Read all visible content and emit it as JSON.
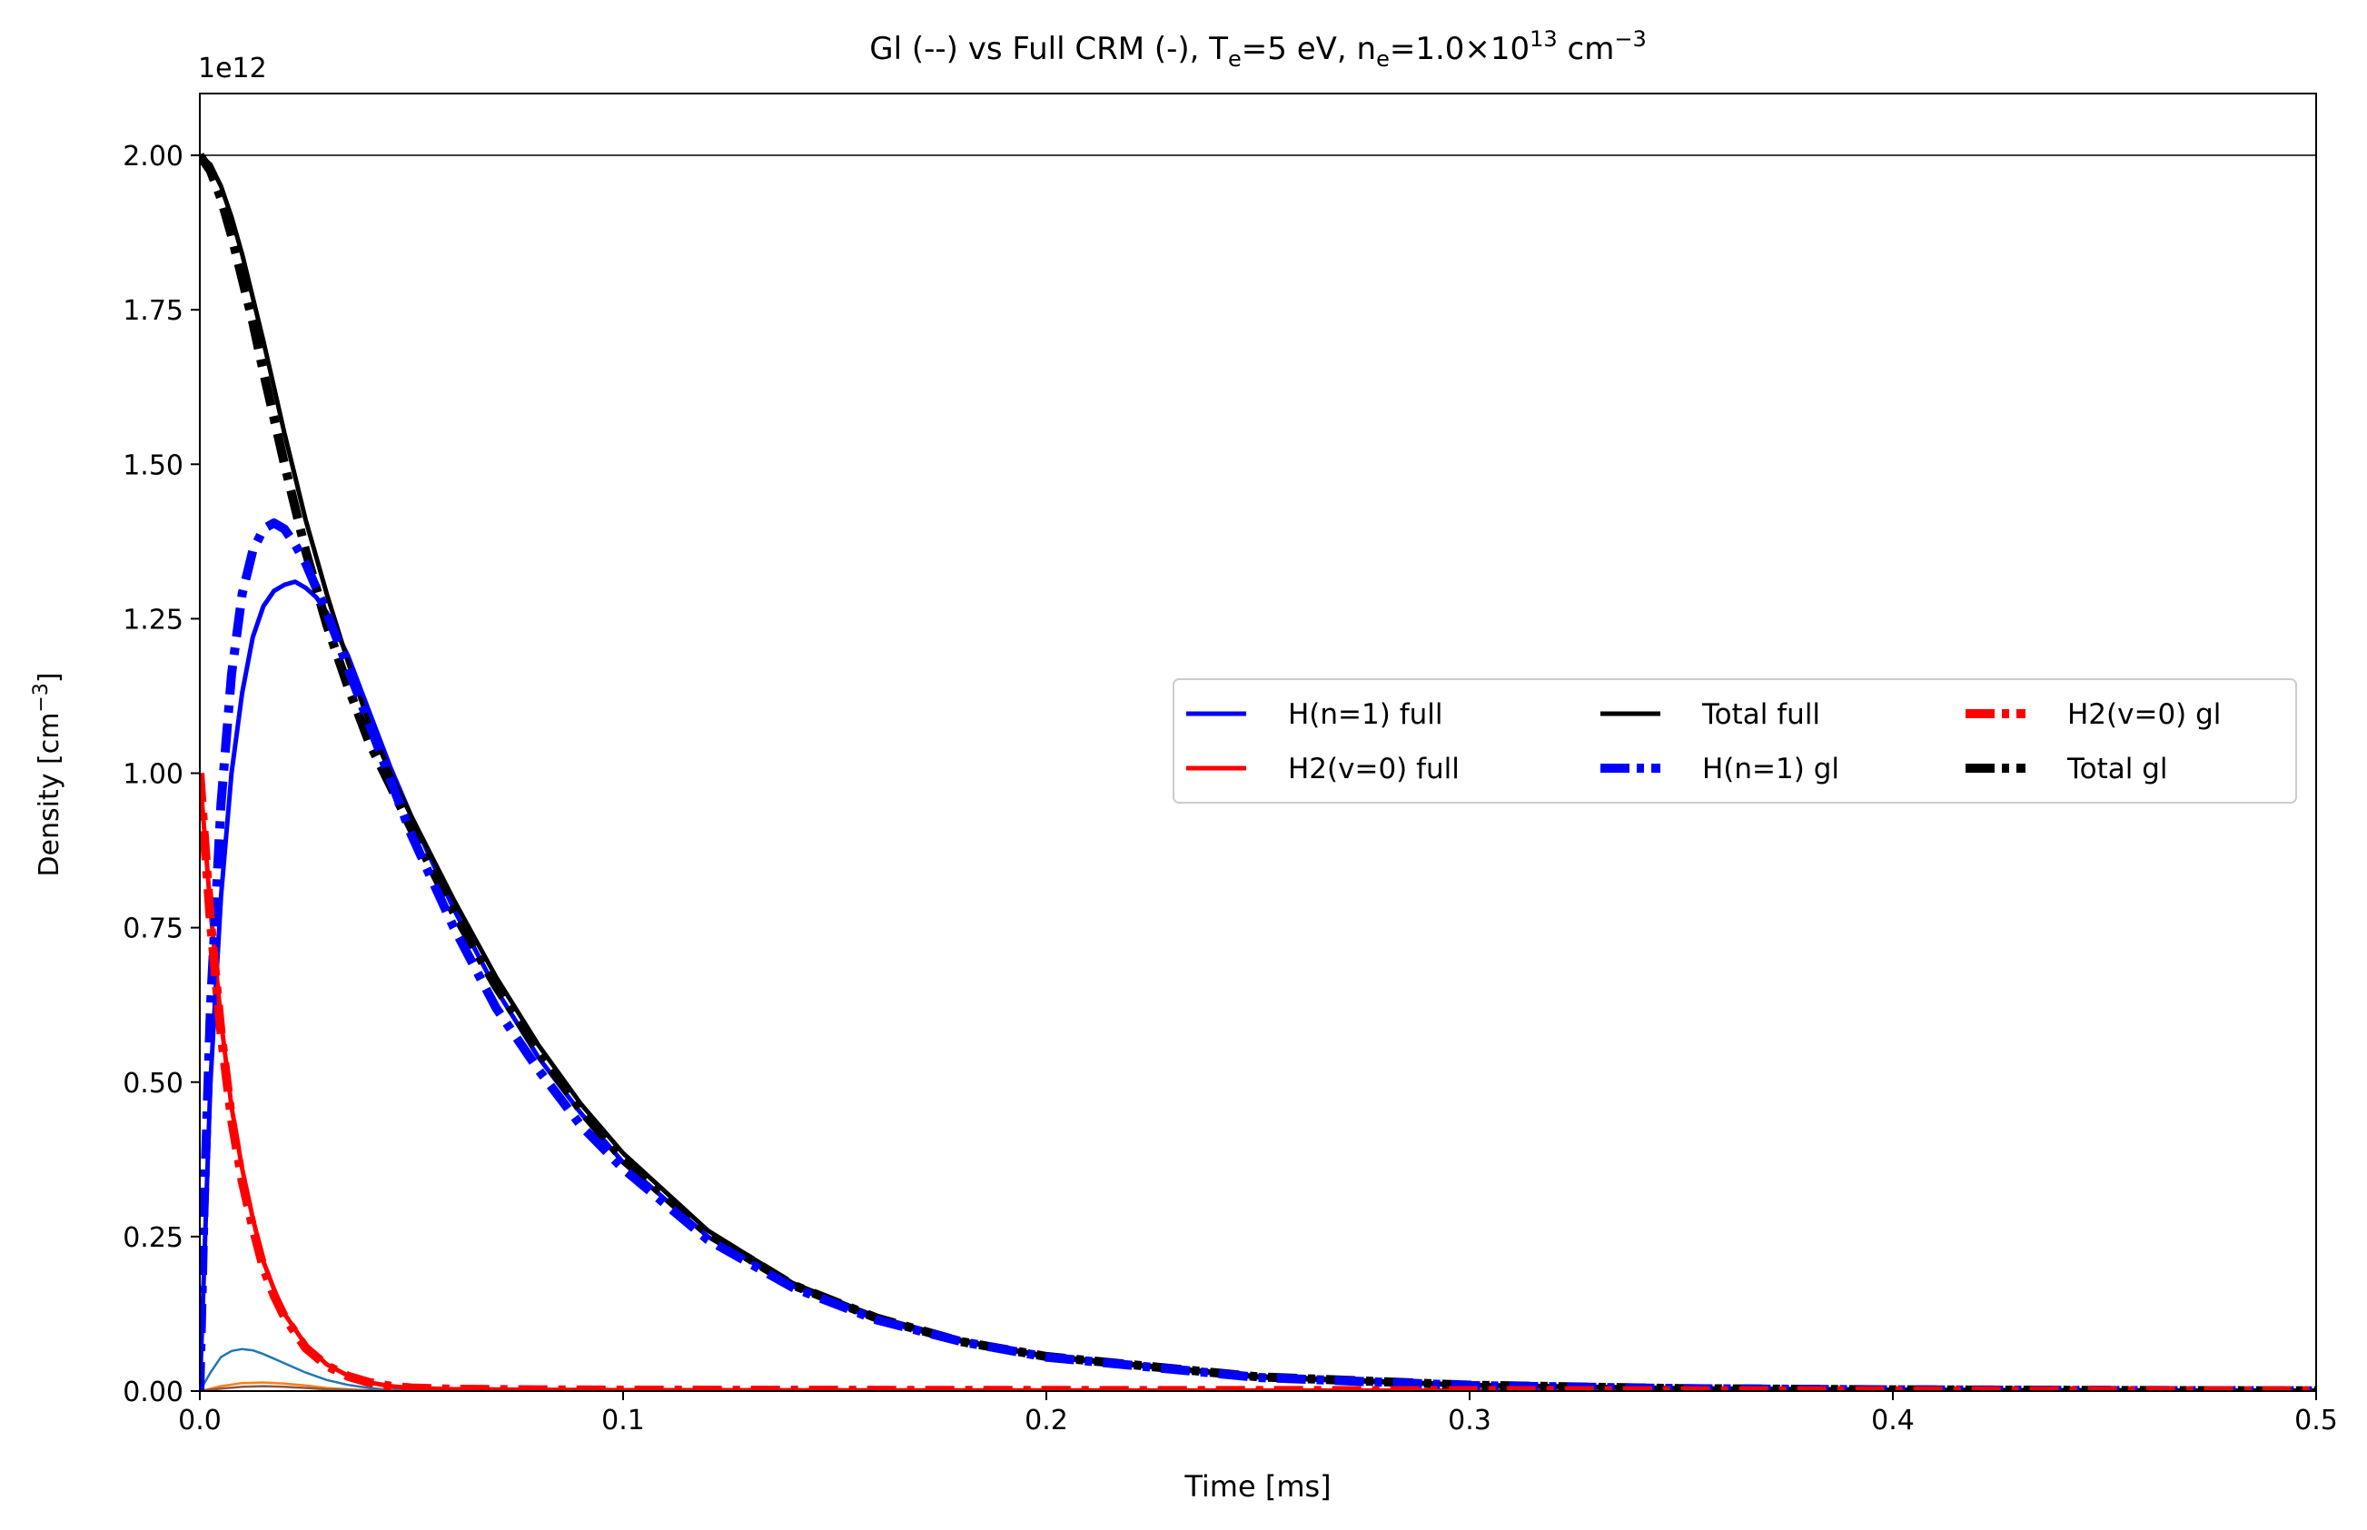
{
  "chart_data": {
    "type": "line",
    "title_parts": {
      "prefix": "Gl (--) vs Full CRM (-),  T",
      "te_sub": "e",
      "te_val": "=5 eV, n",
      "ne_sub": "e",
      "ne_val": "=1.0×10",
      "ne_exp": "13",
      "unit": " cm",
      "unit_exp": "−3"
    },
    "xlabel": "Time [ms]",
    "ylabel_main": "Density [cm",
    "ylabel_exp": "−3",
    "ylabel_close": "]",
    "y_offset_text": "1e12",
    "xlim": [
      0,
      0.5
    ],
    "ylim": [
      0,
      2100000000000.0
    ],
    "x_ticks": [
      0.0,
      0.1,
      0.2,
      0.3,
      0.4,
      0.5
    ],
    "x_tick_labels": [
      "0.0",
      "0.1",
      "0.2",
      "0.3",
      "0.4",
      "0.5"
    ],
    "y_ticks": [
      0,
      250000000000.0,
      500000000000.0,
      750000000000.0,
      1000000000000.0,
      1250000000000.0,
      1500000000000.0,
      1750000000000.0,
      2000000000000.0
    ],
    "y_tick_labels": [
      "0.00",
      "0.25",
      "0.50",
      "0.75",
      "1.00",
      "1.25",
      "1.50",
      "1.75",
      "2.00"
    ],
    "hline": 2000000000000.0,
    "legend_placement": "center-right",
    "legend_columns": 3,
    "series": [
      {
        "name": "H(n=1) full",
        "color": "#0000ff",
        "style": "solid",
        "legend": true,
        "x": [
          0,
          0.001,
          0.0025,
          0.005,
          0.0075,
          0.01,
          0.0125,
          0.015,
          0.0175,
          0.02,
          0.0225,
          0.025,
          0.0275,
          0.03,
          0.035,
          0.04,
          0.045,
          0.05,
          0.06,
          0.07,
          0.08,
          0.09,
          0.1,
          0.12,
          0.14,
          0.16,
          0.18,
          0.2,
          0.25,
          0.3,
          0.35,
          0.4,
          0.45,
          0.5
        ],
        "y": [
          0,
          200000000000.0,
          500000000000.0,
          800000000000.0,
          1000000000000.0,
          1130000000000.0,
          1220000000000.0,
          1270000000000.0,
          1295000000000.0,
          1305000000000.0,
          1310000000000.0,
          1300000000000.0,
          1285000000000.0,
          1260000000000.0,
          1190000000000.0,
          1100000000000.0,
          1010000000000.0,
          930000000000.0,
          780000000000.0,
          650000000000.0,
          540000000000.0,
          450000000000.0,
          370000000000.0,
          250000000000.0,
          170000000000.0,
          115000000000.0,
          80000000000.0,
          55000000000.0,
          22000000000.0,
          9000000000.0,
          4000000000.0,
          2000000000.0,
          1000000000.0,
          500000000.0
        ]
      },
      {
        "name": "H2(v=0) full",
        "color": "#ff0000",
        "style": "solid",
        "legend": true,
        "x": [
          0,
          0.0025,
          0.005,
          0.0075,
          0.01,
          0.0125,
          0.015,
          0.0175,
          0.02,
          0.025,
          0.03,
          0.035,
          0.04,
          0.045,
          0.05,
          0.06,
          0.08,
          0.1,
          0.2,
          0.3,
          0.4,
          0.5
        ],
        "y": [
          1000000000000.0,
          780000000000.0,
          600000000000.0,
          460000000000.0,
          360000000000.0,
          280000000000.0,
          210000000000.0,
          165000000000.0,
          125000000000.0,
          75000000000.0,
          43000000000.0,
          25000000000.0,
          14000000000.0,
          8000000000.0,
          5000000000.0,
          3000000000.0,
          2000000000.0,
          1500000000.0,
          1000000000.0,
          800000000.0,
          500000000.0,
          300000000.0
        ]
      },
      {
        "name": "Total full",
        "color": "#000000",
        "style": "solid",
        "legend": true,
        "x": [
          0,
          0.0025,
          0.005,
          0.0075,
          0.01,
          0.0125,
          0.015,
          0.0175,
          0.02,
          0.0225,
          0.025,
          0.03,
          0.035,
          0.04,
          0.045,
          0.05,
          0.06,
          0.07,
          0.08,
          0.09,
          0.1,
          0.12,
          0.14,
          0.16,
          0.18,
          0.2,
          0.25,
          0.3,
          0.35,
          0.4,
          0.45,
          0.5
        ],
        "y": [
          2000000000000.0,
          1985000000000.0,
          1950000000000.0,
          1900000000000.0,
          1840000000000.0,
          1770000000000.0,
          1700000000000.0,
          1625000000000.0,
          1550000000000.0,
          1480000000000.0,
          1410000000000.0,
          1290000000000.0,
          1180000000000.0,
          1080000000000.0,
          1000000000000.0,
          930000000000.0,
          795000000000.0,
          670000000000.0,
          560000000000.0,
          465000000000.0,
          385000000000.0,
          260000000000.0,
          175000000000.0,
          120000000000.0,
          82000000000.0,
          57000000000.0,
          24000000000.0,
          10000000000.0,
          4500000000.0,
          2000000000.0,
          1000000000.0,
          500000000.0
        ]
      },
      {
        "name": "H(n=1) gl",
        "color": "#0000ff",
        "style": "dashdot",
        "legend": true,
        "x": [
          0,
          0.001,
          0.0025,
          0.005,
          0.0075,
          0.01,
          0.0125,
          0.015,
          0.0175,
          0.02,
          0.0225,
          0.025,
          0.0275,
          0.03,
          0.035,
          0.04,
          0.045,
          0.05,
          0.06,
          0.07,
          0.08,
          0.09,
          0.1,
          0.12,
          0.14,
          0.16,
          0.18,
          0.2,
          0.25,
          0.3,
          0.35,
          0.4,
          0.45,
          0.5
        ],
        "y": [
          0,
          300000000000.0,
          620000000000.0,
          950000000000.0,
          1160000000000.0,
          1290000000000.0,
          1360000000000.0,
          1395000000000.0,
          1405000000000.0,
          1395000000000.0,
          1370000000000.0,
          1340000000000.0,
          1300000000000.0,
          1260000000000.0,
          1170000000000.0,
          1080000000000.0,
          990000000000.0,
          900000000000.0,
          750000000000.0,
          620000000000.0,
          520000000000.0,
          430000000000.0,
          360000000000.0,
          245000000000.0,
          168000000000.0,
          115000000000.0,
          80000000000.0,
          55000000000.0,
          22000000000.0,
          9000000000.0,
          4000000000.0,
          2000000000.0,
          1000000000.0,
          500000000.0
        ]
      },
      {
        "name": "H2(v=0) gl",
        "color": "#ff0000",
        "style": "dashdot",
        "legend": true,
        "x": [
          0,
          0.0025,
          0.005,
          0.0075,
          0.01,
          0.0125,
          0.015,
          0.0175,
          0.02,
          0.025,
          0.03,
          0.035,
          0.04,
          0.045,
          0.05,
          0.06,
          0.08,
          0.1,
          0.2,
          0.3,
          0.4,
          0.5
        ],
        "y": [
          1000000000000.0,
          760000000000.0,
          580000000000.0,
          440000000000.0,
          340000000000.0,
          265000000000.0,
          200000000000.0,
          155000000000.0,
          120000000000.0,
          70000000000.0,
          41000000000.0,
          24000000000.0,
          14000000000.0,
          8000000000.0,
          5000000000.0,
          3000000000.0,
          2000000000.0,
          1500000000.0,
          1000000000.0,
          800000000.0,
          500000000.0,
          300000000.0
        ]
      },
      {
        "name": "Total gl",
        "color": "#000000",
        "style": "dashdot",
        "legend": true,
        "x": [
          0,
          0.0025,
          0.005,
          0.0075,
          0.01,
          0.0125,
          0.015,
          0.0175,
          0.02,
          0.0225,
          0.025,
          0.03,
          0.035,
          0.04,
          0.045,
          0.05,
          0.06,
          0.07,
          0.08,
          0.09,
          0.1,
          0.12,
          0.14,
          0.16,
          0.18,
          0.2,
          0.25,
          0.3,
          0.35,
          0.4,
          0.45,
          0.5
        ],
        "y": [
          2000000000000.0,
          1975000000000.0,
          1930000000000.0,
          1870000000000.0,
          1800000000000.0,
          1730000000000.0,
          1650000000000.0,
          1575000000000.0,
          1500000000000.0,
          1430000000000.0,
          1360000000000.0,
          1240000000000.0,
          1140000000000.0,
          1050000000000.0,
          980000000000.0,
          910000000000.0,
          775000000000.0,
          655000000000.0,
          550000000000.0,
          455000000000.0,
          375000000000.0,
          255000000000.0,
          172000000000.0,
          118000000000.0,
          80000000000.0,
          56000000000.0,
          23000000000.0,
          9500000000.0,
          4000000000.0,
          2000000000.0,
          1000000000.0,
          500000000.0
        ]
      },
      {
        "name": "",
        "color": "#1f77b4",
        "style": "thin",
        "legend": false,
        "x": [
          0,
          0.0025,
          0.005,
          0.0075,
          0.01,
          0.0125,
          0.015,
          0.02,
          0.025,
          0.03,
          0.035,
          0.04,
          0.045,
          0.05,
          0.06,
          0.5
        ],
        "y": [
          0,
          30000000000.0,
          55000000000.0,
          65000000000.0,
          68000000000.0,
          66000000000.0,
          60000000000.0,
          45000000000.0,
          30000000000.0,
          18000000000.0,
          10000000000.0,
          5000000000.0,
          2000000000.0,
          1000000000.0,
          0,
          0
        ]
      },
      {
        "name": "",
        "color": "#ff7f0e",
        "style": "thin",
        "legend": false,
        "x": [
          0,
          0.005,
          0.01,
          0.015,
          0.02,
          0.025,
          0.03,
          0.035,
          0.04,
          0.05,
          0.5
        ],
        "y": [
          0,
          8000000000.0,
          13000000000.0,
          14000000000.0,
          12000000000.0,
          9000000000.0,
          5000000000.0,
          3000000000.0,
          1000000000.0,
          0,
          0
        ]
      },
      {
        "name": "",
        "color": "#8c564b",
        "style": "thin",
        "legend": false,
        "x": [
          0,
          0.005,
          0.01,
          0.015,
          0.02,
          0.025,
          0.03,
          0.04,
          0.05,
          0.5
        ],
        "y": [
          0,
          4000000000.0,
          7000000000.0,
          8000000000.0,
          7000000000.0,
          5000000000.0,
          3000000000.0,
          1000000000.0,
          0,
          0
        ]
      }
    ]
  }
}
